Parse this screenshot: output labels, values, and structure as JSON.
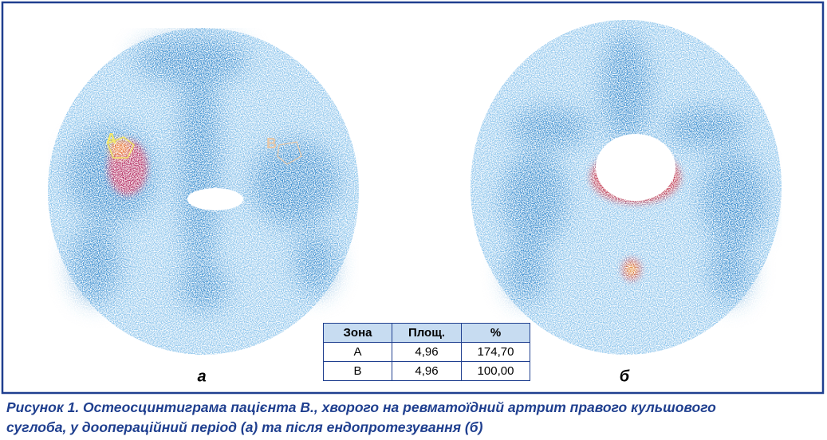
{
  "figure": {
    "panels": [
      {
        "label": "а",
        "regions": [
          "A",
          "B"
        ]
      },
      {
        "label": "б"
      }
    ],
    "table": {
      "header": [
        "Зона",
        "Площ.",
        "%"
      ],
      "rows": [
        [
          "A",
          "4,96",
          "174,70"
        ],
        [
          "B",
          "4,96",
          "100,00"
        ]
      ]
    },
    "caption": {
      "lines": [
        "Рисунок 1. Остеосцинтиграма пацієнта В., хворого на ревматоїдний артрит правого кульшового",
        "суглоба, у доопераційний період (а) та після ендопротезування (б)"
      ]
    }
  }
}
